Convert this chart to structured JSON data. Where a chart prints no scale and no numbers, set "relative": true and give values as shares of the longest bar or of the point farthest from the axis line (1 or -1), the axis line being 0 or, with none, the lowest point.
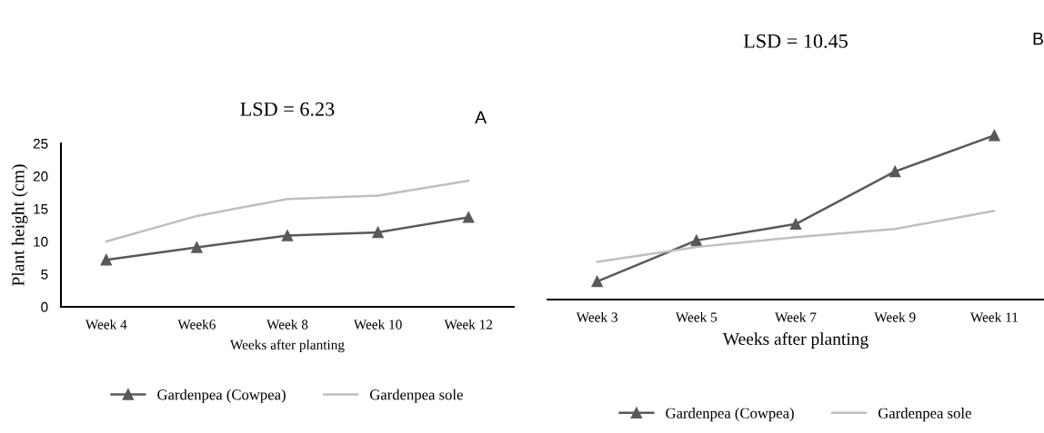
{
  "chart_data": [
    {
      "type": "line",
      "title": "LSD = 6.23",
      "annotations": [
        "A"
      ],
      "xlabel": "Weeks after planting",
      "ylabel": "Plant height (cm)",
      "categories": [
        "Week 4",
        "Week6",
        "Week 8",
        "Week 10",
        "Week 12"
      ],
      "series": [
        {
          "name": "Gardenpea (Cowpea)",
          "color": "#595959",
          "marker": "triangle",
          "values": [
            7.2,
            9.1,
            10.9,
            11.4,
            13.7
          ]
        },
        {
          "name": "Gardenpea sole",
          "color": "#bfbfbf",
          "marker": "none",
          "values": [
            10.0,
            13.9,
            16.5,
            17.0,
            19.3
          ]
        }
      ],
      "ylim": [
        0,
        25
      ],
      "yticks": [
        0,
        5,
        10,
        15,
        20,
        25
      ],
      "grid": false,
      "legend": "bottom"
    },
    {
      "type": "line",
      "title": "LSD = 10.45",
      "annotations": [
        "B"
      ],
      "xlabel": "Weeks after planting",
      "categories": [
        "Week 3",
        "Week 5",
        "Week 7",
        "Week 9",
        "Week 11"
      ],
      "relative": true,
      "series": [
        {
          "name": "Gardenpea (Cowpea)",
          "color": "#595959",
          "marker": "triangle",
          "values": [
            0.11,
            0.36,
            0.46,
            0.78,
            1.0
          ]
        },
        {
          "name": "Gardenpea sole",
          "color": "#bfbfbf",
          "marker": "none",
          "values": [
            0.23,
            0.32,
            0.38,
            0.43,
            0.54
          ]
        }
      ],
      "grid": false,
      "legend": "bottom"
    }
  ]
}
